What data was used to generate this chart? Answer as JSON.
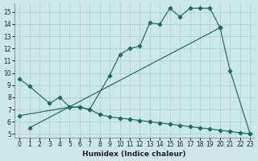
{
  "xlabel": "Humidex (Indice chaleur)",
  "bg_color": "#cce8e6",
  "line_color": "#1a6b62",
  "grid_color": "#aad0cc",
  "xlim_min": -0.5,
  "xlim_max": 23.4,
  "ylim_min": 4.7,
  "ylim_max": 15.7,
  "xticks": [
    0,
    1,
    2,
    3,
    4,
    5,
    6,
    7,
    8,
    9,
    10,
    11,
    12,
    13,
    14,
    15,
    16,
    17,
    18,
    19,
    20,
    21,
    22,
    23
  ],
  "yticks": [
    5,
    6,
    7,
    8,
    9,
    10,
    11,
    12,
    13,
    14,
    15
  ],
  "line1_x": [
    0,
    1,
    3,
    4,
    5,
    6,
    7,
    9,
    10,
    11,
    12,
    13,
    14,
    15,
    16,
    17,
    18,
    19,
    20,
    21,
    23
  ],
  "line1_y": [
    9.5,
    8.9,
    7.5,
    8.0,
    7.2,
    7.2,
    7.0,
    9.8,
    11.5,
    12.0,
    12.2,
    14.1,
    14.0,
    15.3,
    14.6,
    15.3,
    15.3,
    15.3,
    13.7,
    10.2,
    5.0
  ],
  "line2_x": [
    1,
    20
  ],
  "line2_y": [
    5.5,
    13.7
  ],
  "line3_x": [
    0,
    5,
    6,
    7,
    8,
    9,
    10,
    11,
    12,
    13,
    14,
    15,
    16,
    17,
    18,
    19,
    20,
    21,
    22,
    23
  ],
  "line3_y": [
    6.5,
    7.2,
    7.2,
    7.0,
    6.6,
    6.4,
    6.3,
    6.2,
    6.1,
    6.0,
    5.9,
    5.8,
    5.7,
    5.6,
    5.5,
    5.4,
    5.3,
    5.2,
    5.1,
    5.0
  ],
  "linewidth": 0.85,
  "markersize": 2.3,
  "tick_fontsize": 5.5,
  "xlabel_fontsize": 6.5
}
